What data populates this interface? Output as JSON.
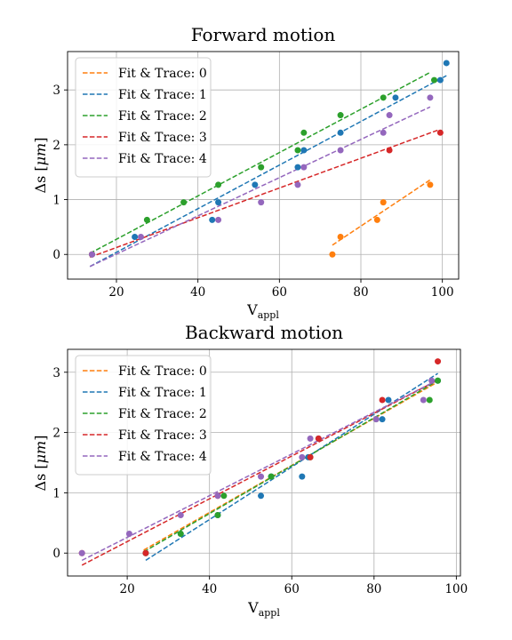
{
  "colors": {
    "trace0": "#ff7f0e",
    "trace1": "#1f77b4",
    "trace2": "#2ca02c",
    "trace3": "#d62728",
    "trace4": "#9467bd"
  },
  "chart_data": [
    {
      "type": "scatter",
      "title": "Forward motion",
      "xlabel_main": "V",
      "xlabel_sub": "appl",
      "ylabel_prefix": "Δs [",
      "ylabel_unit": "μm",
      "ylabel_suffix": "]",
      "xlim": [
        8,
        104
      ],
      "ylim": [
        -0.45,
        3.7
      ],
      "xticks": [
        20,
        40,
        60,
        80,
        100
      ],
      "yticks": [
        0,
        1,
        2,
        3
      ],
      "grid": true,
      "legend_position": "top-left",
      "series": [
        {
          "name": "Fit & Trace: 0",
          "color_key": "trace0",
          "points": [
            [
              73,
              0
            ],
            [
              75,
              0.32
            ],
            [
              84,
              0.63
            ],
            [
              85.5,
              0.95
            ],
            [
              97,
              1.27
            ]
          ],
          "fit": [
            [
              73,
              0.17
            ],
            [
              97,
              1.36
            ]
          ]
        },
        {
          "name": "Fit & Trace: 1",
          "color_key": "trace1",
          "points": [
            [
              24.5,
              0.32
            ],
            [
              43.5,
              0.63
            ],
            [
              45,
              0.95
            ],
            [
              54,
              1.27
            ],
            [
              64.5,
              1.59
            ],
            [
              66,
              1.9
            ],
            [
              75,
              2.22
            ],
            [
              88.5,
              2.86
            ],
            [
              99.5,
              3.18
            ],
            [
              101,
              3.49
            ]
          ],
          "fit": [
            [
              13.5,
              -0.22
            ],
            [
              101,
              3.26
            ]
          ]
        },
        {
          "name": "Fit & Trace: 2",
          "color_key": "trace2",
          "points": [
            [
              14,
              0
            ],
            [
              27.5,
              0.63
            ],
            [
              36.5,
              0.95
            ],
            [
              45,
              1.27
            ],
            [
              55.5,
              1.59
            ],
            [
              64.5,
              1.9
            ],
            [
              66,
              2.22
            ],
            [
              75,
              2.54
            ],
            [
              85.5,
              2.86
            ],
            [
              98,
              3.18
            ]
          ],
          "fit": [
            [
              13.5,
              0.02
            ],
            [
              97,
              3.32
            ]
          ]
        },
        {
          "name": "Fit & Trace: 3",
          "color_key": "trace3",
          "points": [
            [
              14,
              0
            ],
            [
              87,
              1.9
            ],
            [
              99.5,
              2.22
            ]
          ],
          "fit": [
            [
              13.5,
              -0.05
            ],
            [
              99,
              2.27
            ]
          ]
        },
        {
          "name": "Fit & Trace: 4",
          "color_key": "trace4",
          "points": [
            [
              14,
              0
            ],
            [
              26,
              0.32
            ],
            [
              45,
              0.63
            ],
            [
              55.5,
              0.95
            ],
            [
              64.5,
              1.27
            ],
            [
              66,
              1.59
            ],
            [
              75,
              1.9
            ],
            [
              85.5,
              2.22
            ],
            [
              87,
              2.54
            ],
            [
              97,
              2.86
            ]
          ],
          "fit": [
            [
              13.5,
              -0.22
            ],
            [
              97,
              2.69
            ]
          ]
        }
      ]
    },
    {
      "type": "scatter",
      "title": "Backward motion",
      "xlabel_main": "V",
      "xlabel_sub": "appl",
      "ylabel_prefix": "Δs [",
      "ylabel_unit": "μm",
      "ylabel_suffix": "]",
      "xlim": [
        5.5,
        101
      ],
      "ylim": [
        -0.38,
        3.38
      ],
      "xticks": [
        20,
        40,
        60,
        80,
        100
      ],
      "yticks": [
        0,
        1,
        2,
        3
      ],
      "grid": true,
      "legend_position": "top-left",
      "series": [
        {
          "name": "Fit & Trace: 0",
          "color_key": "trace0",
          "points": [],
          "fit": [
            [
              24,
              0.05
            ],
            [
              95,
              2.82
            ]
          ]
        },
        {
          "name": "Fit & Trace: 1",
          "color_key": "trace1",
          "points": [
            [
              24.5,
              0
            ],
            [
              33,
              0.32
            ],
            [
              42,
              0.63
            ],
            [
              52.5,
              0.95
            ],
            [
              55,
              1.27
            ],
            [
              62.5,
              1.27
            ],
            [
              64,
              1.59
            ],
            [
              66.5,
              1.9
            ],
            [
              82,
              2.22
            ],
            [
              83.5,
              2.54
            ],
            [
              95.5,
              2.86
            ]
          ],
          "fit": [
            [
              24.5,
              -0.12
            ],
            [
              95.5,
              2.98
            ]
          ]
        },
        {
          "name": "Fit & Trace: 2",
          "color_key": "trace2",
          "points": [
            [
              24.5,
              0
            ],
            [
              33,
              0.32
            ],
            [
              42,
              0.63
            ],
            [
              43.5,
              0.95
            ],
            [
              55,
              1.27
            ],
            [
              64.5,
              1.59
            ],
            [
              80.5,
              2.22
            ],
            [
              93.5,
              2.54
            ],
            [
              95.5,
              2.86
            ]
          ],
          "fit": [
            [
              24,
              0.02
            ],
            [
              95.5,
              2.86
            ]
          ]
        },
        {
          "name": "Fit & Trace: 3",
          "color_key": "trace3",
          "points": [
            [
              9,
              0
            ],
            [
              24.5,
              0
            ],
            [
              42,
              0.95
            ],
            [
              64.5,
              1.59
            ],
            [
              66.5,
              1.9
            ],
            [
              82,
              2.54
            ],
            [
              95.5,
              3.18
            ]
          ],
          "fit": [
            [
              9,
              -0.2
            ],
            [
              95.5,
              2.87
            ]
          ]
        },
        {
          "name": "Fit & Trace: 4",
          "color_key": "trace4",
          "points": [
            [
              9,
              0
            ],
            [
              20.5,
              0.32
            ],
            [
              33,
              0.63
            ],
            [
              42,
              0.95
            ],
            [
              52.5,
              1.27
            ],
            [
              62.5,
              1.59
            ],
            [
              64.5,
              1.9
            ],
            [
              80.5,
              2.22
            ],
            [
              92,
              2.54
            ],
            [
              94,
              2.86
            ]
          ],
          "fit": [
            [
              9,
              -0.12
            ],
            [
              94,
              2.82
            ]
          ]
        }
      ]
    }
  ]
}
